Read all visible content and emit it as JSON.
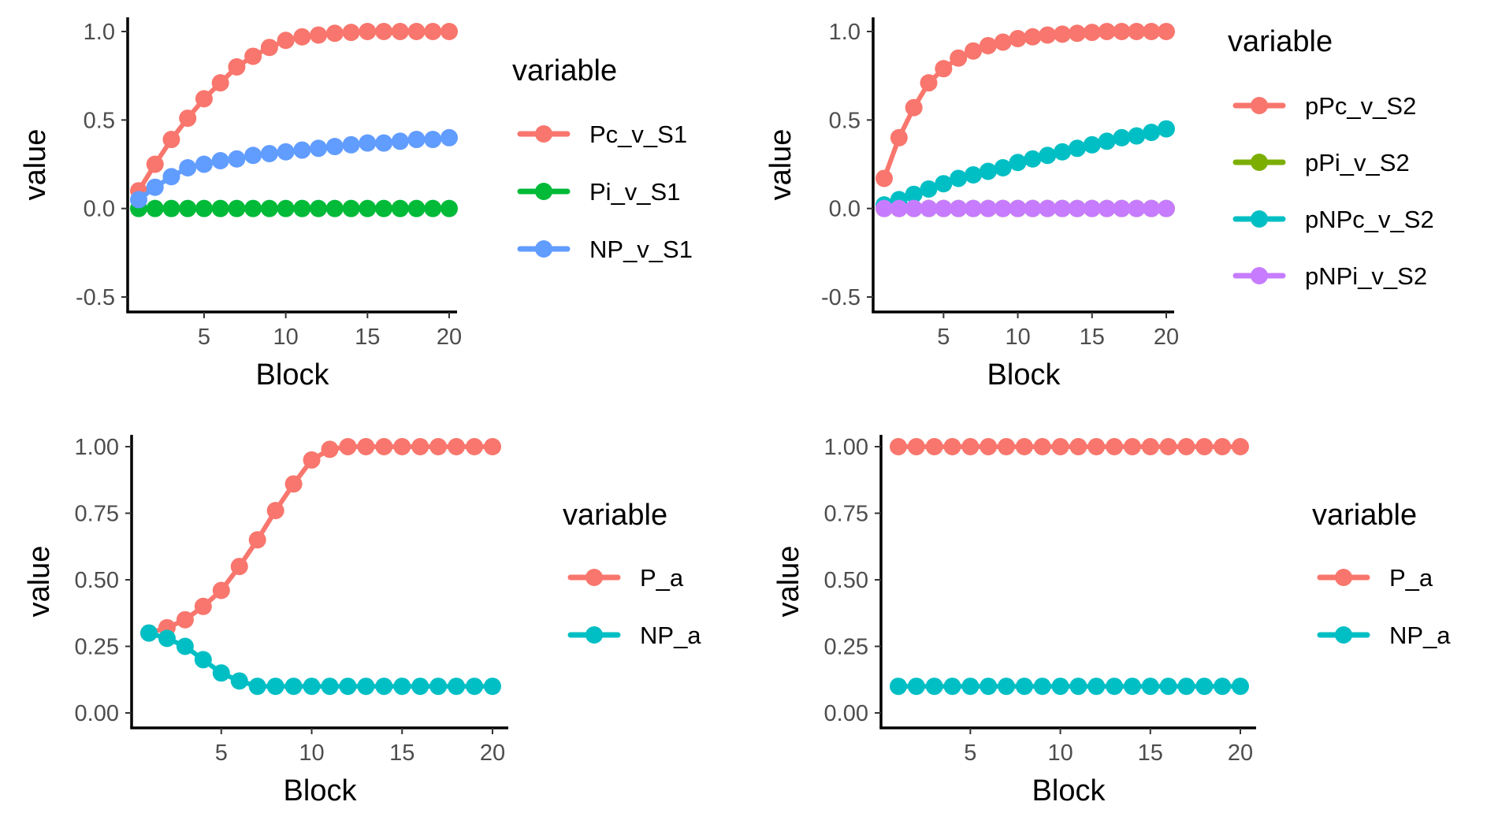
{
  "chart_data": [
    {
      "type": "line",
      "xlabel": "Block",
      "ylabel": "value",
      "xlim": [
        1,
        20
      ],
      "ylim": [
        -0.5,
        1.0
      ],
      "xticks": [
        5,
        10,
        15,
        20
      ],
      "yticks": [
        -0.5,
        0.0,
        0.5,
        1.0
      ],
      "ytick_labels": [
        "-0.5",
        "0.0",
        "0.5",
        "1.0"
      ],
      "grid": false,
      "legend_title": "variable",
      "legend_position": "right",
      "x": [
        1,
        2,
        3,
        4,
        5,
        6,
        7,
        8,
        9,
        10,
        11,
        12,
        13,
        14,
        15,
        16,
        17,
        18,
        19,
        20
      ],
      "series": [
        {
          "name": "Pc_v_S1",
          "color": "#F8766D",
          "values": [
            0.1,
            0.25,
            0.39,
            0.51,
            0.62,
            0.71,
            0.8,
            0.86,
            0.91,
            0.95,
            0.97,
            0.98,
            0.99,
            0.995,
            1.0,
            1.0,
            1.0,
            1.0,
            1.0,
            1.0
          ]
        },
        {
          "name": "Pi_v_S1",
          "color": "#00BA38",
          "values": [
            0,
            0,
            0,
            0,
            0,
            0,
            0,
            0,
            0,
            0,
            0,
            0,
            0,
            0,
            0,
            0,
            0,
            0,
            0,
            0
          ]
        },
        {
          "name": "NP_v_S1",
          "color": "#619CFF",
          "values": [
            0.05,
            0.12,
            0.18,
            0.23,
            0.25,
            0.27,
            0.28,
            0.3,
            0.31,
            0.32,
            0.33,
            0.34,
            0.35,
            0.36,
            0.37,
            0.37,
            0.38,
            0.39,
            0.39,
            0.4
          ]
        }
      ]
    },
    {
      "type": "line",
      "xlabel": "Block",
      "ylabel": "value",
      "xlim": [
        1,
        20
      ],
      "ylim": [
        -0.5,
        1.0
      ],
      "xticks": [
        5,
        10,
        15,
        20
      ],
      "yticks": [
        -0.5,
        0.0,
        0.5,
        1.0
      ],
      "ytick_labels": [
        "-0.5",
        "0.0",
        "0.5",
        "1.0"
      ],
      "grid": false,
      "legend_title": "variable",
      "legend_position": "right",
      "x": [
        1,
        2,
        3,
        4,
        5,
        6,
        7,
        8,
        9,
        10,
        11,
        12,
        13,
        14,
        15,
        16,
        17,
        18,
        19,
        20
      ],
      "series": [
        {
          "name": "pPc_v_S2",
          "color": "#F8766D",
          "values": [
            0.17,
            0.4,
            0.57,
            0.71,
            0.79,
            0.85,
            0.89,
            0.92,
            0.94,
            0.96,
            0.97,
            0.98,
            0.985,
            0.99,
            0.995,
            1.0,
            1.0,
            1.0,
            1.0,
            1.0
          ]
        },
        {
          "name": "pPi_v_S2",
          "color": "#7CAE00",
          "values": [
            0,
            0,
            0,
            0,
            0,
            0,
            0,
            0,
            0,
            0,
            0,
            0,
            0,
            0,
            0,
            0,
            0,
            0,
            0,
            0
          ]
        },
        {
          "name": "pNPc_v_S2",
          "color": "#00BFC4",
          "values": [
            0.02,
            0.05,
            0.08,
            0.11,
            0.14,
            0.17,
            0.19,
            0.21,
            0.23,
            0.26,
            0.28,
            0.3,
            0.32,
            0.34,
            0.36,
            0.38,
            0.4,
            0.41,
            0.43,
            0.45
          ]
        },
        {
          "name": "pNPi_v_S2",
          "color": "#C77CFF",
          "values": [
            0,
            0,
            0,
            0,
            0,
            0,
            0,
            0,
            0,
            0,
            0,
            0,
            0,
            0,
            0,
            0,
            0,
            0,
            0,
            0
          ]
        }
      ]
    },
    {
      "type": "line",
      "xlabel": "Block",
      "ylabel": "value",
      "xlim": [
        1,
        20
      ],
      "ylim": [
        0.0,
        1.0
      ],
      "xticks": [
        5,
        10,
        15,
        20
      ],
      "yticks": [
        0.0,
        0.25,
        0.5,
        0.75,
        1.0
      ],
      "ytick_labels": [
        "0.00",
        "0.25",
        "0.50",
        "0.75",
        "1.00"
      ],
      "grid": false,
      "legend_title": "variable",
      "legend_position": "right",
      "x": [
        1,
        2,
        3,
        4,
        5,
        6,
        7,
        8,
        9,
        10,
        11,
        12,
        13,
        14,
        15,
        16,
        17,
        18,
        19,
        20
      ],
      "series": [
        {
          "name": "P_a",
          "color": "#F8766D",
          "values": [
            0.3,
            0.32,
            0.35,
            0.4,
            0.46,
            0.55,
            0.65,
            0.76,
            0.86,
            0.95,
            0.99,
            1.0,
            1.0,
            1.0,
            1.0,
            1.0,
            1.0,
            1.0,
            1.0,
            1.0
          ]
        },
        {
          "name": "NP_a",
          "color": "#00BFC4",
          "values": [
            0.3,
            0.28,
            0.25,
            0.2,
            0.15,
            0.12,
            0.1,
            0.1,
            0.1,
            0.1,
            0.1,
            0.1,
            0.1,
            0.1,
            0.1,
            0.1,
            0.1,
            0.1,
            0.1,
            0.1
          ]
        }
      ]
    },
    {
      "type": "line",
      "xlabel": "Block",
      "ylabel": "value",
      "xlim": [
        1,
        20
      ],
      "ylim": [
        0.0,
        1.0
      ],
      "xticks": [
        5,
        10,
        15,
        20
      ],
      "yticks": [
        0.0,
        0.25,
        0.5,
        0.75,
        1.0
      ],
      "ytick_labels": [
        "0.00",
        "0.25",
        "0.50",
        "0.75",
        "1.00"
      ],
      "grid": false,
      "legend_title": "variable",
      "legend_position": "right",
      "x": [
        1,
        2,
        3,
        4,
        5,
        6,
        7,
        8,
        9,
        10,
        11,
        12,
        13,
        14,
        15,
        16,
        17,
        18,
        19,
        20
      ],
      "series": [
        {
          "name": "P_a",
          "color": "#F8766D",
          "values": [
            1.0,
            1.0,
            1.0,
            1.0,
            1.0,
            1.0,
            1.0,
            1.0,
            1.0,
            1.0,
            1.0,
            1.0,
            1.0,
            1.0,
            1.0,
            1.0,
            1.0,
            1.0,
            1.0,
            1.0
          ]
        },
        {
          "name": "NP_a",
          "color": "#00BFC4",
          "values": [
            0.1,
            0.1,
            0.1,
            0.1,
            0.1,
            0.1,
            0.1,
            0.1,
            0.1,
            0.1,
            0.1,
            0.1,
            0.1,
            0.1,
            0.1,
            0.1,
            0.1,
            0.1,
            0.1,
            0.1
          ]
        }
      ]
    }
  ]
}
